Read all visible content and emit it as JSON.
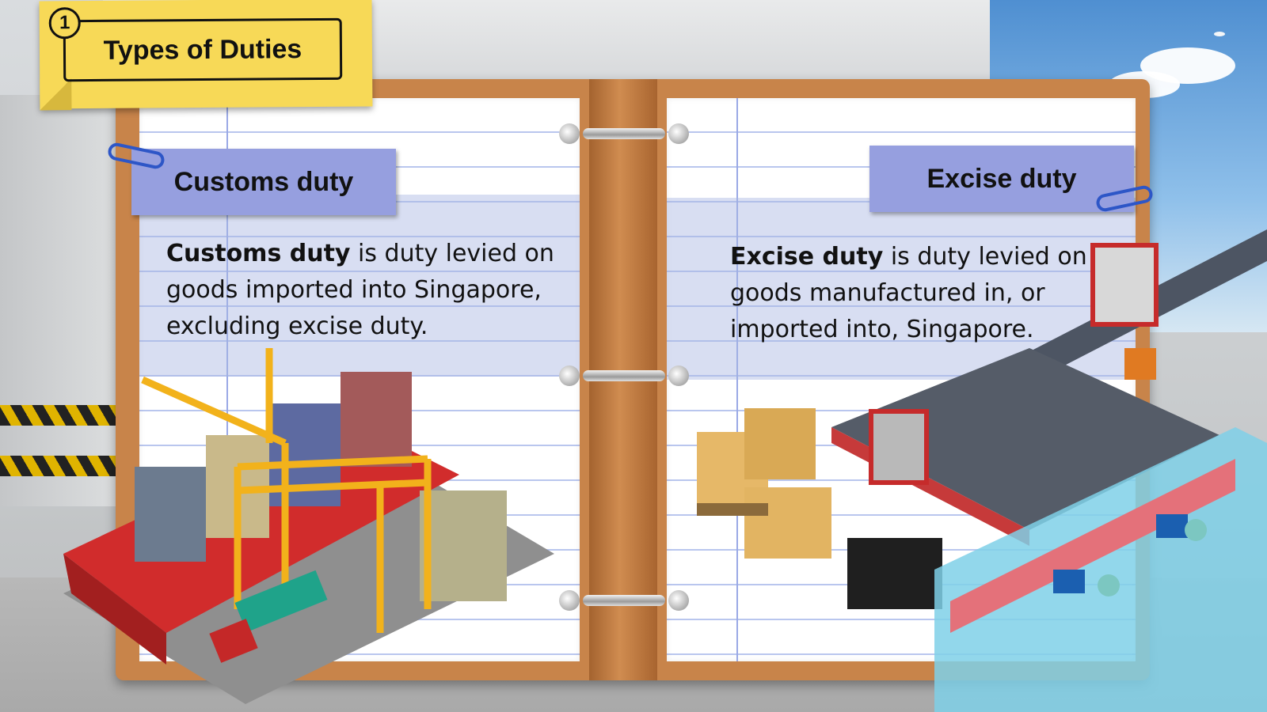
{
  "title": {
    "number": "1",
    "text": "Types of Duties"
  },
  "customs": {
    "tag": "Customs duty",
    "term": "Customs duty",
    "definition_rest": " is duty levied on goods imported into Singapore, excluding excise duty."
  },
  "excise": {
    "tag": "Excise duty",
    "term": "Excise duty",
    "definition_rest": " is duty levied on goods manufactured in, or imported into, Singapore."
  },
  "colors": {
    "sticky_note": "#f7d957",
    "tag_background": "#969fdf",
    "binder": "#c8844a",
    "clip": "#2d56c7"
  },
  "icons": [
    "paperclip-icon",
    "port-illustration",
    "factory-illustration",
    "boxes-illustration"
  ]
}
